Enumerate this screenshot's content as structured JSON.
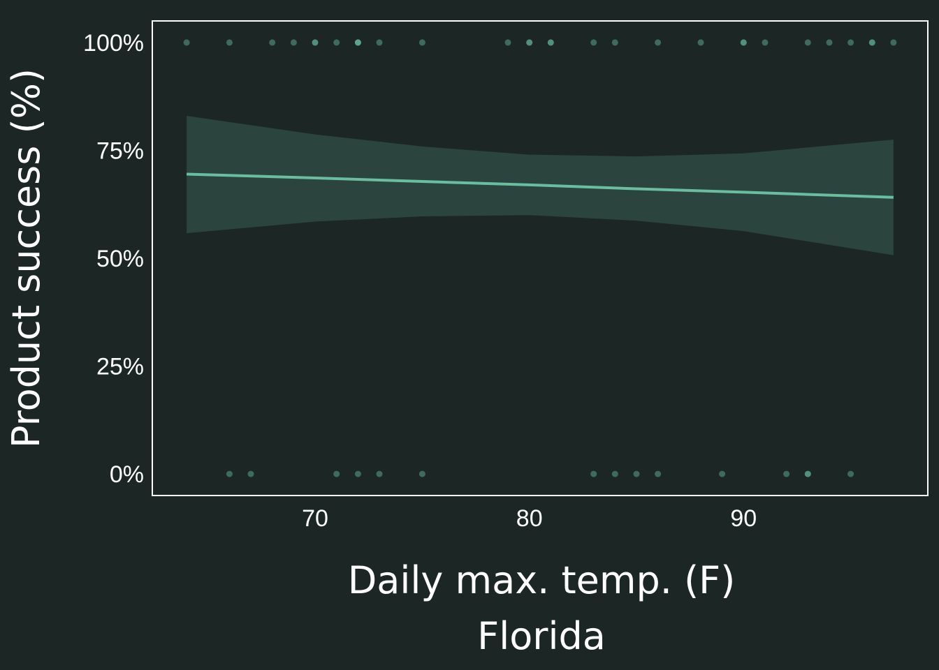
{
  "colors": {
    "background": "#1c2725",
    "panel_border": "#ffffff",
    "text": "#ffffff",
    "fit_line": "#69bea0",
    "ribbon": "#2c443e",
    "points": "#69bea0"
  },
  "chart_data": {
    "type": "scatter",
    "xlabel": "Daily max. temp. (F)",
    "ylabel": "Product success (%)",
    "subtitle": "Florida",
    "xlim": [
      62.4,
      98.6
    ],
    "ylim": [
      -0.05,
      1.05
    ],
    "x_ticks": [
      70,
      80,
      90
    ],
    "x_tick_labels": [
      "70",
      "80",
      "90"
    ],
    "y_ticks": [
      0,
      0.25,
      0.5,
      0.75,
      1.0
    ],
    "y_tick_labels": [
      "0%",
      "25%",
      "50%",
      "75%",
      "100%"
    ],
    "grid": false,
    "legend": "none",
    "series": [
      {
        "kind": "points",
        "x": [
          64,
          66,
          68,
          69,
          70,
          70,
          71,
          72,
          72,
          72,
          73,
          75,
          79,
          80,
          80,
          81,
          81,
          83,
          84,
          86,
          88,
          90,
          90,
          91,
          93,
          94,
          95,
          96,
          96,
          97,
          66,
          67,
          71,
          72,
          73,
          75,
          83,
          84,
          85,
          86,
          89,
          92,
          93,
          93,
          95
        ],
        "y": [
          1,
          1,
          1,
          1,
          1,
          1,
          1,
          1,
          1,
          1,
          1,
          1,
          1,
          1,
          1,
          1,
          1,
          1,
          1,
          1,
          1,
          1,
          1,
          1,
          1,
          1,
          1,
          1,
          1,
          1,
          0,
          0,
          0,
          0,
          0,
          0,
          0,
          0,
          0,
          0,
          0,
          0,
          0,
          0,
          0
        ]
      },
      {
        "kind": "fit",
        "x": [
          64,
          70,
          75,
          80,
          85,
          90,
          97
        ],
        "y": [
          0.695,
          0.686,
          0.678,
          0.67,
          0.661,
          0.653,
          0.641
        ],
        "lower": [
          0.558,
          0.585,
          0.597,
          0.6,
          0.587,
          0.563,
          0.507
        ],
        "upper": [
          0.83,
          0.787,
          0.759,
          0.74,
          0.736,
          0.743,
          0.775
        ]
      }
    ]
  }
}
